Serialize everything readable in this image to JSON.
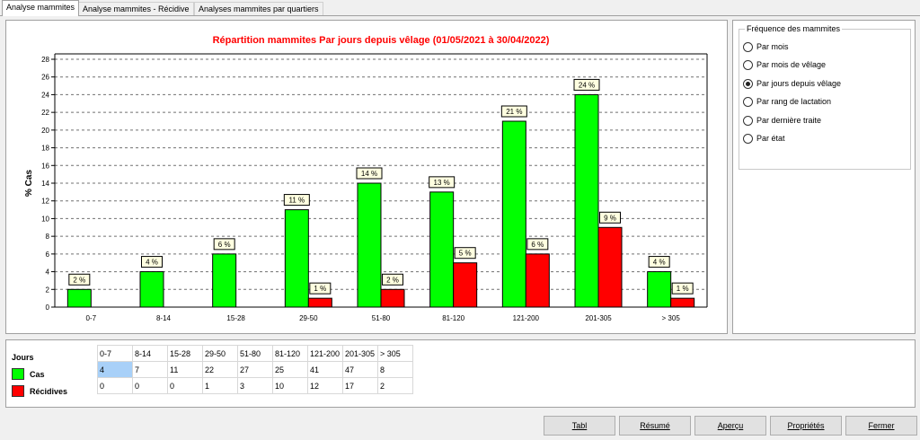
{
  "tabs": [
    {
      "label": "Analyse mammites",
      "active": true
    },
    {
      "label": "Analyse mammites - Récidive",
      "active": false
    },
    {
      "label": "Analyses mammites par quartiers",
      "active": false
    }
  ],
  "chart_data": {
    "type": "bar",
    "title": "Répartition mammites Par jours depuis vêlage (01/05/2021 à 30/04/2022)",
    "xlabel": "",
    "ylabel": "% Cas",
    "ylim": [
      0,
      28
    ],
    "ytick_step": 2,
    "categories": [
      "0-7",
      "8-14",
      "15-28",
      "29-50",
      "51-80",
      "81-120",
      "121-200",
      "201-305",
      "> 305"
    ],
    "series": [
      {
        "name": "Cas",
        "color": "#00ff00",
        "values": [
          2,
          4,
          6,
          11,
          14,
          13,
          21,
          24,
          4
        ],
        "labels": [
          "2 %",
          "4 %",
          "6 %",
          "11 %",
          "14 %",
          "13 %",
          "21 %",
          "24 %",
          "4 %"
        ]
      },
      {
        "name": "Récidives",
        "color": "#ff0000",
        "values": [
          0,
          0,
          0,
          1,
          2,
          5,
          6,
          9,
          1
        ],
        "labels": [
          "",
          "",
          "",
          "1 %",
          "2 %",
          "5 %",
          "6 %",
          "9 %",
          "1 %"
        ]
      }
    ],
    "grid": true,
    "title_color": "#ff0000"
  },
  "frequency": {
    "title": "Fréquence des mammites",
    "options": [
      {
        "label": "Par mois",
        "checked": false
      },
      {
        "label": "Par mois de vêlage",
        "checked": false
      },
      {
        "label": "Par jours depuis vêlage",
        "checked": true
      },
      {
        "label": "Par rang de lactation",
        "checked": false
      },
      {
        "label": "Par dernière traite",
        "checked": false
      },
      {
        "label": "Par état",
        "checked": false
      }
    ]
  },
  "legend": {
    "title": "Jours",
    "items": [
      {
        "label": "Cas",
        "color": "#00ff00"
      },
      {
        "label": "Récidives",
        "color": "#ff0000"
      }
    ]
  },
  "data_table": {
    "headers": [
      "0-7",
      "8-14",
      "15-28",
      "29-50",
      "51-80",
      "81-120",
      "121-200",
      "201-305",
      "> 305"
    ],
    "rows": [
      [
        "4",
        "7",
        "11",
        "22",
        "27",
        "25",
        "41",
        "47",
        "8"
      ],
      [
        "0",
        "0",
        "0",
        "1",
        "3",
        "10",
        "12",
        "17",
        "2"
      ]
    ]
  },
  "buttons": [
    {
      "name": "tabl-button",
      "label": "Tabl"
    },
    {
      "name": "resume-button",
      "label": "Résumé"
    },
    {
      "name": "apercu-button",
      "label": "Aperçu"
    },
    {
      "name": "proprietes-button",
      "label": "Propriétés"
    },
    {
      "name": "fermer-button",
      "label": "Fermer"
    }
  ]
}
